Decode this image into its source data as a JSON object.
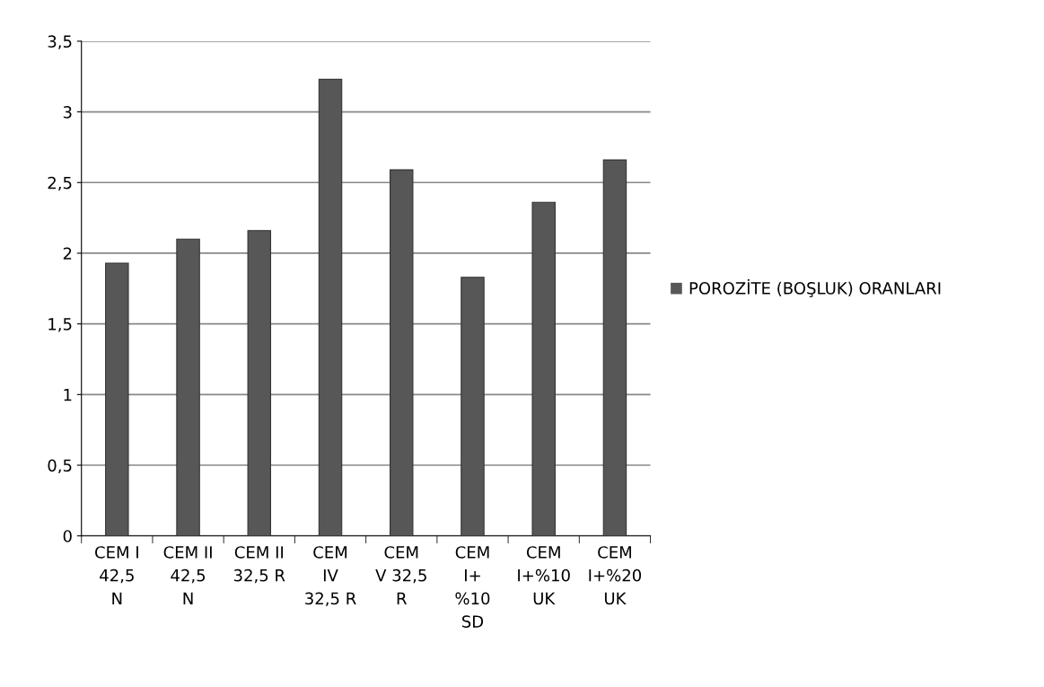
{
  "chart_data": {
    "type": "bar",
    "categories": [
      "CEM I\n42,5\nN",
      "CEM II\n42,5\nN",
      "CEM II\n32,5 R",
      "CEM\nIV\n32,5 R",
      "CEM\nV 32,5\nR",
      "CEM\nI+\n%10\nSD",
      "CEM\nI+%10\nUK",
      "CEM\nI+%20\nUK"
    ],
    "series": [
      {
        "name": "POROZİTE (BOŞLUK) ORANLARI",
        "color": "#575757",
        "values": [
          1.93,
          2.1,
          2.16,
          3.23,
          2.59,
          1.83,
          2.36,
          2.66
        ]
      }
    ],
    "ylim": [
      0,
      3.5
    ],
    "yticks": [
      0,
      {
        "value": 0.5,
        "label": "0,5"
      },
      1,
      {
        "value": 1.5,
        "label": "1,5"
      },
      2,
      {
        "value": 2.5,
        "label": "2,5"
      },
      3,
      {
        "value": 3.5,
        "label": "3,5"
      }
    ],
    "grid": "y",
    "legend": "right"
  }
}
